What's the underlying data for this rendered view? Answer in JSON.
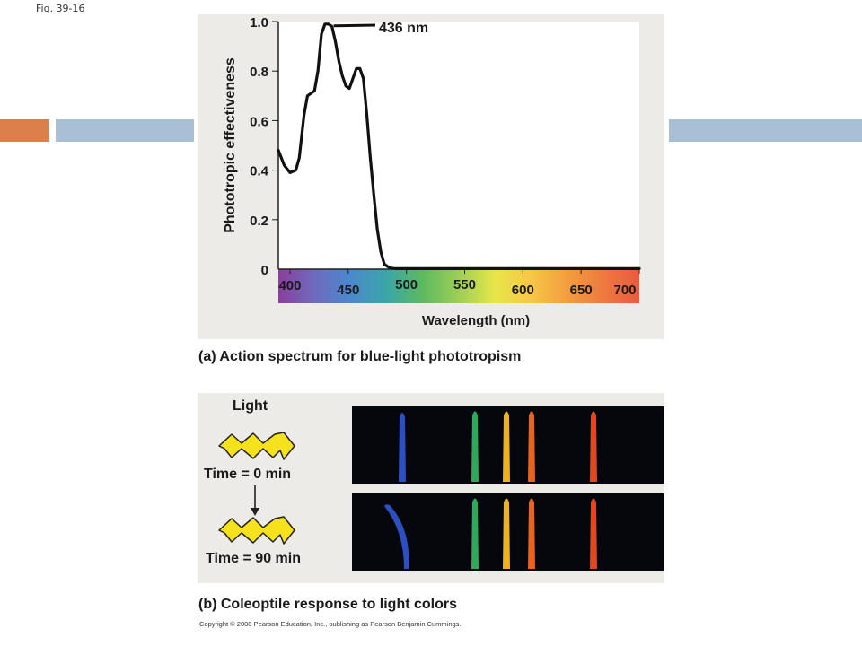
{
  "figure_label": "Fig. 39-16",
  "panel_a": {
    "caption": "(a) Action spectrum for blue-light phototropism"
  },
  "panel_b": {
    "caption": "(b) Coleoptile response to light colors",
    "light_label": "Light",
    "time0_label": "Time = 0 min",
    "time90_label": "Time = 90 min",
    "coleoptile_colors": [
      "#2e4fc2",
      "#2ea85a",
      "#f0b21c",
      "#e8631e",
      "#e4471c"
    ]
  },
  "copyright": "Copyright © 2008 Pearson Education, Inc., publishing as Pearson Benjamin Cummings.",
  "chart_data": {
    "type": "line",
    "ylabel": "Phototropic effectiveness",
    "xlabel": "Wavelength (nm)",
    "ylim": [
      0,
      1.0
    ],
    "xlim": [
      390,
      700
    ],
    "y_ticks": [
      "0",
      "0.2",
      "0.4",
      "0.6",
      "0.8",
      "1.0"
    ],
    "y_tick_values": [
      0,
      0.2,
      0.4,
      0.6,
      0.8,
      1.0
    ],
    "x_ticks": [
      "400",
      "450",
      "500",
      "550",
      "600",
      "650",
      "700"
    ],
    "x_tick_values": [
      400,
      450,
      500,
      550,
      600,
      650,
      700
    ],
    "annotation": "436 nm",
    "annotation_x": 436,
    "series": [
      {
        "color": "#111111",
        "x": [
          390,
          395,
          400,
          405,
          408,
          412,
          415,
          418,
          421,
          424,
          427,
          430,
          433,
          436,
          439,
          442,
          445,
          448,
          451,
          454,
          457,
          460,
          463,
          466,
          469,
          472,
          475,
          478,
          481,
          484,
          486,
          487,
          489,
          492,
          500,
          550,
          600,
          650,
          700
        ],
        "y": [
          0.48,
          0.42,
          0.39,
          0.4,
          0.45,
          0.62,
          0.7,
          0.71,
          0.72,
          0.8,
          0.95,
          0.99,
          0.99,
          0.98,
          0.92,
          0.84,
          0.78,
          0.74,
          0.73,
          0.77,
          0.81,
          0.81,
          0.77,
          0.62,
          0.45,
          0.3,
          0.16,
          0.07,
          0.02,
          0.01,
          0.005,
          0.004,
          0.003,
          0.002,
          0.002,
          0.002,
          0.002,
          0.002,
          0.002
        ]
      }
    ],
    "spectrum_colors": [
      "#8a3f9d",
      "#6e6bbe",
      "#4a89cc",
      "#3aa6a8",
      "#5dba5f",
      "#9dce55",
      "#e8e64a",
      "#f7c647",
      "#f39d3f",
      "#ee7a3f",
      "#e95a3f"
    ],
    "grid": false
  }
}
